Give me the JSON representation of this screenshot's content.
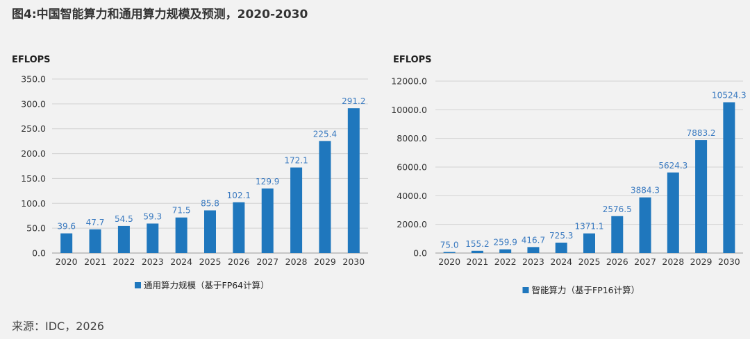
{
  "figure": {
    "title": "图4:中国智能算力和通用算力规模及预测，2020-2030",
    "source": "来源：IDC，2026"
  },
  "colors": {
    "bar": "#1f77bd",
    "label": "#3a7ac0",
    "grid": "#d2d2d2"
  },
  "chart_data": [
    {
      "type": "bar",
      "unit_label": "EFLOPS",
      "categories": [
        "2020",
        "2021",
        "2022",
        "2023",
        "2024",
        "2025",
        "2026",
        "2027",
        "2028",
        "2029",
        "2030"
      ],
      "values": [
        39.6,
        47.7,
        54.5,
        59.3,
        71.5,
        85.8,
        102.1,
        129.9,
        172.1,
        225.4,
        291.2
      ],
      "value_labels": [
        "39.6",
        "47.7",
        "54.5",
        "59.3",
        "71.5",
        "85.8",
        "102.1",
        "129.9",
        "172.1",
        "225.4",
        "291.2"
      ],
      "series": [
        {
          "name": "通用算力规模（基于FP64计算）"
        }
      ],
      "yticks": [
        "0.0",
        "50.0",
        "100.0",
        "150.0",
        "200.0",
        "250.0",
        "300.0",
        "350.0"
      ],
      "ylim": [
        0,
        350
      ],
      "grid": true,
      "legend_position": "bottom"
    },
    {
      "type": "bar",
      "unit_label": "EFLOPS",
      "categories": [
        "2020",
        "2021",
        "2022",
        "2023",
        "2024",
        "2025",
        "2026",
        "2027",
        "2028",
        "2029",
        "2030"
      ],
      "values": [
        75.0,
        155.2,
        259.9,
        416.7,
        725.3,
        1371.1,
        2576.5,
        3884.3,
        5624.3,
        7883.2,
        10524.3
      ],
      "value_labels": [
        "75.0",
        "155.2",
        "259.9",
        "416.7",
        "725.3",
        "1371.1",
        "2576.5",
        "3884.3",
        "5624.3",
        "7883.2",
        "10524.3"
      ],
      "series": [
        {
          "name": "智能算力（基于FP16计算）"
        }
      ],
      "yticks": [
        "0.0",
        "2000.0",
        "4000.0",
        "6000.0",
        "8000.0",
        "10000.0",
        "12000.0"
      ],
      "ylim": [
        0,
        12000
      ],
      "grid": true,
      "legend_position": "bottom"
    }
  ]
}
